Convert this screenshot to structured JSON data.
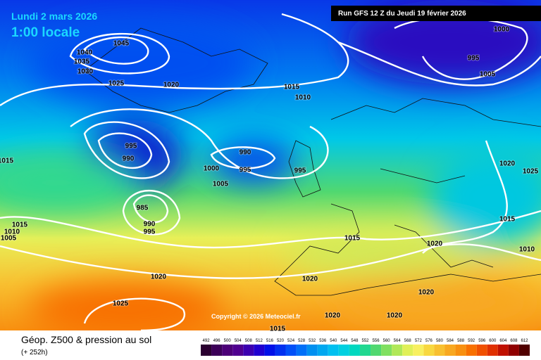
{
  "header": {
    "date": "Lundi 2 mars 2026",
    "time": "1:00 locale",
    "run": "Run GFS 12 Z du Jeudi 19 février 2026",
    "copyright": "Copyright © 2026 Meteociel.fr"
  },
  "footer": {
    "title": "Géop. Z500 & pression au sol",
    "subtitle": "(+ 252h)"
  },
  "isobar_labels": [
    1045,
    1040,
    1035,
    1030,
    1025,
    1020,
    1015,
    1010,
    1000,
    995,
    1005,
    995,
    990,
    990,
    995,
    1000,
    995,
    1005,
    1015,
    1020,
    1025,
    985,
    990,
    995,
    1015,
    1010,
    1005,
    1015,
    1015,
    1020,
    1010,
    1020,
    1020,
    1020,
    1020,
    1025,
    1020,
    1015
  ],
  "legend": {
    "ticks": [
      492,
      496,
      500,
      504,
      508,
      512,
      516,
      520,
      524,
      528,
      532,
      536,
      540,
      544,
      548,
      552,
      556,
      560,
      564,
      568,
      572,
      576,
      580,
      584,
      588,
      592,
      596,
      600,
      604,
      608,
      612
    ],
    "colors": [
      "#2a0030",
      "#3c0058",
      "#4c0078",
      "#500090",
      "#3c00b0",
      "#2000d0",
      "#0010e8",
      "#0030f0",
      "#0050f8",
      "#0070f8",
      "#0090f0",
      "#00a8f0",
      "#00c0f0",
      "#00d0e0",
      "#00d8c0",
      "#20d890",
      "#50d870",
      "#80e060",
      "#b0e858",
      "#e0f058",
      "#f8f060",
      "#f8d840",
      "#f8c030",
      "#f8a820",
      "#f89010",
      "#f87000",
      "#f05000",
      "#e03000",
      "#c01000",
      "#900000",
      "#500000"
    ]
  }
}
